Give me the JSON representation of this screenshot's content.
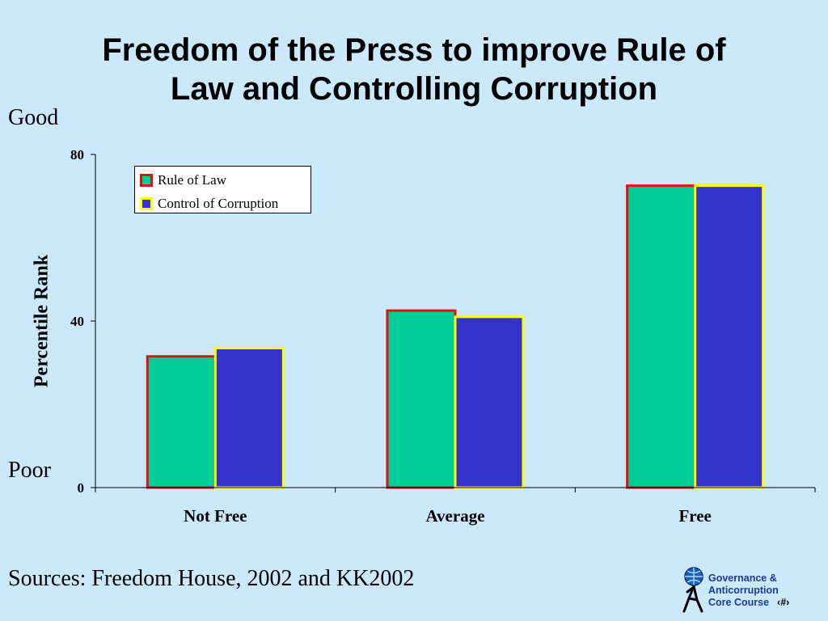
{
  "title": {
    "line1": "Freedom of the Press to improve Rule of",
    "line2": "Law and Controlling Corruption"
  },
  "annotations": {
    "good": "Good",
    "poor": "Poor"
  },
  "footer": {
    "sources": "Sources:  Freedom House, 2002 and KK2002",
    "brand_line1": "Governance &",
    "brand_line2": "Anticorruption",
    "brand_line3": "Core Course",
    "page_number": "‹#›",
    "logo_icon": "globe-person-icon"
  },
  "colors": {
    "background": "#cce9fb",
    "rule_of_law_fill": "#00cc99",
    "rule_of_law_border": "#e01010",
    "control_of_corruption_fill": "#3333cc",
    "control_of_corruption_border": "#ffff00",
    "brand_text": "#1a3aa0"
  },
  "chart_data": {
    "type": "bar",
    "title": "Freedom of the Press to improve Rule of Law and Controlling Corruption",
    "xlabel": "",
    "ylabel": "Percentile Rank",
    "ylim": [
      0,
      80
    ],
    "yticks": [
      0,
      40,
      80
    ],
    "categories": [
      "Not Free",
      "Average",
      "Free"
    ],
    "series": [
      {
        "name": "Rule of Law",
        "values": [
          31.5,
          42.5,
          72.5
        ]
      },
      {
        "name": "Control of Corruption",
        "values": [
          33.5,
          41,
          72.5
        ]
      }
    ],
    "legend_position": "top-left",
    "grid": false
  }
}
